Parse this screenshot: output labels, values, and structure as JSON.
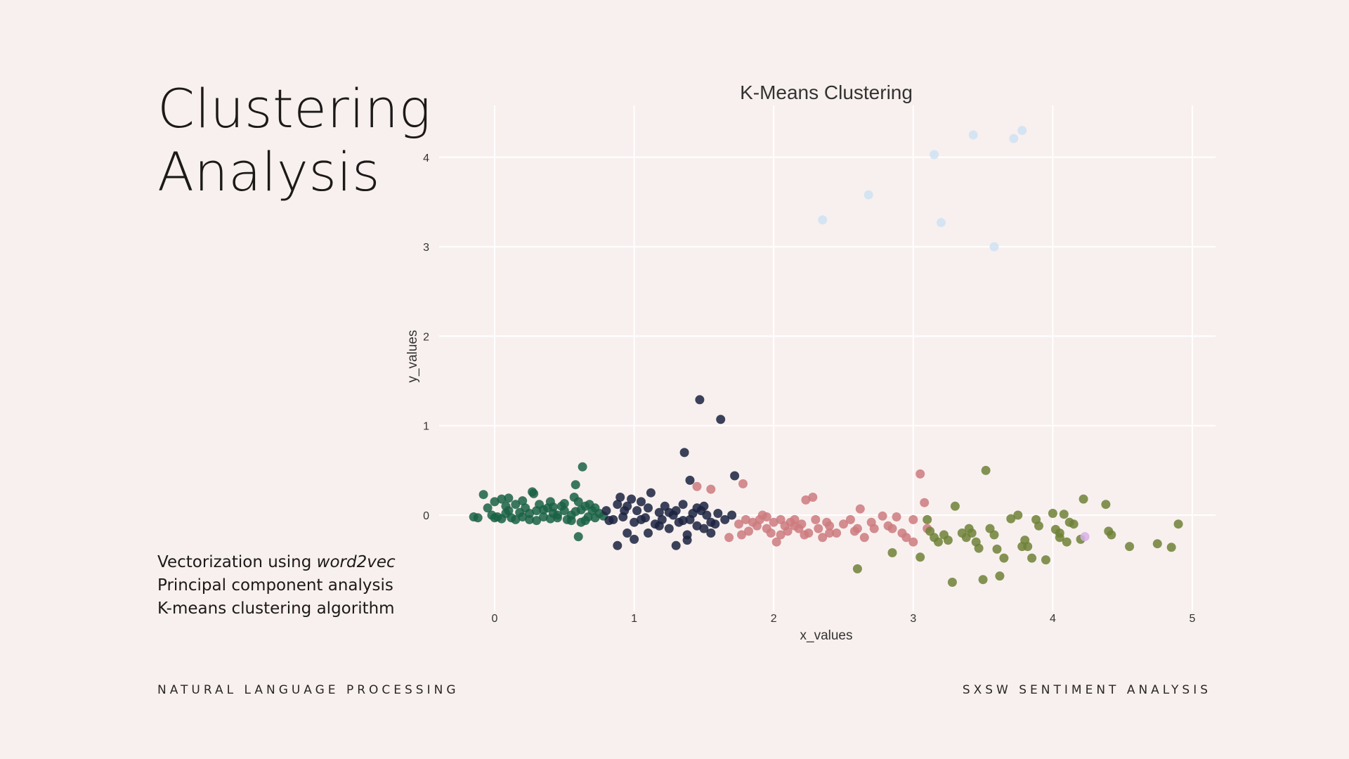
{
  "slide": {
    "title_line1": "Clustering",
    "title_line2": "Analysis",
    "bullets": {
      "b1_prefix": "Vectorization using ",
      "b1_emph": "word2vec",
      "b2": "Principal component analysis",
      "b3": "K-means clustering algorithm"
    },
    "footer_left": "NATURAL LANGUAGE PROCESSING",
    "footer_right": "SXSW SENTIMENT ANALYSIS"
  },
  "chart_data": {
    "type": "scatter",
    "title": "K-Means Clustering",
    "xlabel": "x_values",
    "ylabel": "y_values",
    "xlim": [
      -0.3,
      5.15
    ],
    "ylim": [
      -0.95,
      4.55
    ],
    "xticks": [
      0,
      1,
      2,
      3,
      4,
      5
    ],
    "yticks": [
      0,
      1,
      2,
      3,
      4
    ],
    "grid": true,
    "legend": "none",
    "series": [
      {
        "color": "#1a6145",
        "points": [
          [
            -0.15,
            -0.02
          ],
          [
            -0.12,
            -0.03
          ],
          [
            -0.08,
            0.23
          ],
          [
            -0.05,
            0.08
          ],
          [
            -0.02,
            0.0
          ],
          [
            0.0,
            0.15
          ],
          [
            0.02,
            -0.02
          ],
          [
            0.05,
            0.18
          ],
          [
            0.08,
            0.1
          ],
          [
            0.1,
            0.05
          ],
          [
            0.12,
            -0.03
          ],
          [
            0.15,
            0.12
          ],
          [
            0.18,
            0.03
          ],
          [
            0.2,
            -0.02
          ],
          [
            0.22,
            0.08
          ],
          [
            0.25,
            0.02
          ],
          [
            0.27,
            0.26
          ],
          [
            0.28,
            0.24
          ],
          [
            0.3,
            0.05
          ],
          [
            0.32,
            0.12
          ],
          [
            0.35,
            -0.02
          ],
          [
            0.38,
            0.08
          ],
          [
            0.4,
            0.15
          ],
          [
            0.42,
            0.02
          ],
          [
            0.45,
            -0.03
          ],
          [
            0.48,
            0.1
          ],
          [
            0.5,
            0.05
          ],
          [
            0.52,
            -0.05
          ],
          [
            0.55,
            0.0
          ],
          [
            0.57,
            0.2
          ],
          [
            0.58,
            0.34
          ],
          [
            0.6,
            0.15
          ],
          [
            0.62,
            0.06
          ],
          [
            0.63,
            0.54
          ],
          [
            0.65,
            0.1
          ],
          [
            0.67,
            -0.02
          ],
          [
            0.7,
            0.05
          ],
          [
            0.72,
            -0.03
          ],
          [
            0.75,
            0.02
          ],
          [
            0.78,
            -0.01
          ],
          [
            0.6,
            -0.24
          ],
          [
            0.05,
            -0.04
          ],
          [
            0.15,
            -0.05
          ],
          [
            0.3,
            -0.06
          ],
          [
            0.45,
            0.0
          ],
          [
            0.55,
            -0.06
          ],
          [
            0.68,
            0.12
          ],
          [
            0.2,
            0.16
          ],
          [
            0.1,
            0.19
          ],
          [
            0.35,
            0.06
          ],
          [
            0.5,
            0.13
          ],
          [
            0.62,
            -0.08
          ],
          [
            0.72,
            0.08
          ],
          [
            0.0,
            -0.03
          ],
          [
            0.25,
            -0.05
          ],
          [
            0.4,
            -0.04
          ],
          [
            0.65,
            -0.06
          ],
          [
            0.08,
            0.02
          ],
          [
            0.42,
            0.09
          ],
          [
            0.58,
            0.04
          ]
        ]
      },
      {
        "color": "#1b2240",
        "points": [
          [
            0.8,
            0.05
          ],
          [
            0.85,
            -0.05
          ],
          [
            0.88,
            0.12
          ],
          [
            0.9,
            0.2
          ],
          [
            0.92,
            -0.02
          ],
          [
            0.95,
            0.1
          ],
          [
            0.98,
            0.18
          ],
          [
            1.0,
            -0.08
          ],
          [
            1.02,
            0.05
          ],
          [
            1.05,
            0.15
          ],
          [
            1.08,
            -0.03
          ],
          [
            1.1,
            0.08
          ],
          [
            1.12,
            0.25
          ],
          [
            1.15,
            -0.1
          ],
          [
            1.18,
            0.03
          ],
          [
            1.2,
            -0.05
          ],
          [
            1.22,
            0.1
          ],
          [
            1.25,
            -0.15
          ],
          [
            1.28,
            0.0
          ],
          [
            1.3,
            0.05
          ],
          [
            1.32,
            -0.08
          ],
          [
            1.35,
            0.12
          ],
          [
            1.36,
            0.7
          ],
          [
            1.38,
            -0.22
          ],
          [
            1.4,
            -0.05
          ],
          [
            1.42,
            0.02
          ],
          [
            1.45,
            -0.12
          ],
          [
            1.47,
            1.29
          ],
          [
            1.48,
            0.05
          ],
          [
            1.5,
            -0.15
          ],
          [
            1.52,
            0.0
          ],
          [
            1.55,
            -0.08
          ],
          [
            1.6,
            0.02
          ],
          [
            1.62,
            1.07
          ],
          [
            1.65,
            -0.05
          ],
          [
            1.7,
            0.0
          ],
          [
            1.72,
            0.44
          ],
          [
            1.4,
            0.39
          ],
          [
            0.88,
            -0.34
          ],
          [
            1.0,
            -0.27
          ],
          [
            1.3,
            -0.34
          ],
          [
            1.38,
            -0.28
          ],
          [
            1.55,
            -0.2
          ],
          [
            1.1,
            -0.2
          ],
          [
            0.95,
            -0.2
          ],
          [
            1.25,
            0.03
          ],
          [
            1.45,
            0.08
          ],
          [
            1.58,
            -0.1
          ],
          [
            1.05,
            -0.05
          ],
          [
            1.18,
            -0.12
          ],
          [
            0.82,
            -0.06
          ],
          [
            1.35,
            -0.06
          ],
          [
            1.5,
            0.1
          ],
          [
            0.93,
            0.05
          ]
        ]
      },
      {
        "color": "#cc7a7e",
        "points": [
          [
            1.75,
            -0.1
          ],
          [
            1.78,
            0.35
          ],
          [
            1.8,
            -0.05
          ],
          [
            1.82,
            -0.18
          ],
          [
            1.85,
            -0.08
          ],
          [
            1.88,
            -0.12
          ],
          [
            1.9,
            -0.05
          ],
          [
            1.92,
            0.0
          ],
          [
            1.95,
            -0.15
          ],
          [
            1.98,
            -0.2
          ],
          [
            2.0,
            -0.08
          ],
          [
            2.02,
            -0.3
          ],
          [
            2.05,
            -0.05
          ],
          [
            2.08,
            -0.12
          ],
          [
            2.1,
            -0.18
          ],
          [
            2.12,
            -0.08
          ],
          [
            2.15,
            -0.05
          ],
          [
            2.18,
            -0.15
          ],
          [
            2.2,
            -0.1
          ],
          [
            2.22,
            -0.22
          ],
          [
            2.25,
            -0.2
          ],
          [
            2.28,
            0.2
          ],
          [
            2.3,
            -0.05
          ],
          [
            2.32,
            -0.15
          ],
          [
            2.35,
            -0.25
          ],
          [
            2.38,
            -0.08
          ],
          [
            2.4,
            -0.12
          ],
          [
            2.45,
            -0.2
          ],
          [
            2.5,
            -0.1
          ],
          [
            2.55,
            -0.05
          ],
          [
            2.6,
            -0.15
          ],
          [
            2.62,
            0.07
          ],
          [
            2.65,
            -0.25
          ],
          [
            2.7,
            -0.08
          ],
          [
            2.72,
            -0.15
          ],
          [
            2.78,
            -0.01
          ],
          [
            2.82,
            -0.12
          ],
          [
            2.88,
            -0.02
          ],
          [
            2.92,
            -0.2
          ],
          [
            2.95,
            -0.25
          ],
          [
            3.0,
            -0.05
          ],
          [
            3.05,
            0.46
          ],
          [
            3.08,
            0.14
          ],
          [
            3.1,
            -0.15
          ],
          [
            3.0,
            -0.3
          ],
          [
            2.23,
            0.17
          ],
          [
            1.68,
            -0.25
          ],
          [
            1.45,
            0.32
          ],
          [
            1.55,
            0.29
          ],
          [
            1.77,
            -0.22
          ],
          [
            2.05,
            -0.22
          ],
          [
            2.4,
            -0.2
          ],
          [
            2.58,
            -0.18
          ],
          [
            2.85,
            -0.15
          ],
          [
            1.95,
            -0.02
          ],
          [
            2.15,
            -0.12
          ]
        ]
      },
      {
        "color": "#6e8136",
        "points": [
          [
            2.6,
            -0.6
          ],
          [
            2.85,
            -0.42
          ],
          [
            3.05,
            -0.47
          ],
          [
            3.12,
            -0.18
          ],
          [
            3.15,
            -0.25
          ],
          [
            3.18,
            -0.3
          ],
          [
            3.22,
            -0.22
          ],
          [
            3.28,
            -0.75
          ],
          [
            3.3,
            0.1
          ],
          [
            3.35,
            -0.2
          ],
          [
            3.38,
            -0.25
          ],
          [
            3.4,
            -0.15
          ],
          [
            3.42,
            -0.2
          ],
          [
            3.45,
            -0.3
          ],
          [
            3.47,
            -0.37
          ],
          [
            3.5,
            -0.72
          ],
          [
            3.52,
            0.5
          ],
          [
            3.55,
            -0.15
          ],
          [
            3.58,
            -0.22
          ],
          [
            3.6,
            -0.38
          ],
          [
            3.62,
            -0.68
          ],
          [
            3.65,
            -0.48
          ],
          [
            3.7,
            -0.04
          ],
          [
            3.75,
            0.0
          ],
          [
            3.78,
            -0.35
          ],
          [
            3.8,
            -0.28
          ],
          [
            3.85,
            -0.48
          ],
          [
            3.88,
            -0.05
          ],
          [
            3.9,
            -0.12
          ],
          [
            3.95,
            -0.5
          ],
          [
            4.0,
            0.02
          ],
          [
            4.02,
            -0.16
          ],
          [
            4.05,
            -0.2
          ],
          [
            4.08,
            0.01
          ],
          [
            4.1,
            -0.3
          ],
          [
            4.12,
            -0.08
          ],
          [
            4.15,
            -0.1
          ],
          [
            4.2,
            -0.27
          ],
          [
            4.22,
            0.18
          ],
          [
            4.38,
            0.12
          ],
          [
            4.4,
            -0.18
          ],
          [
            4.42,
            -0.22
          ],
          [
            4.55,
            -0.35
          ],
          [
            4.75,
            -0.32
          ],
          [
            4.85,
            -0.36
          ],
          [
            4.9,
            -0.1
          ],
          [
            3.1,
            -0.05
          ],
          [
            3.25,
            -0.28
          ],
          [
            3.82,
            -0.35
          ],
          [
            4.05,
            -0.25
          ]
        ]
      },
      {
        "color": "#cfe2f3",
        "points": [
          [
            2.35,
            3.3
          ],
          [
            2.68,
            3.58
          ],
          [
            3.15,
            4.03
          ],
          [
            3.2,
            3.27
          ],
          [
            3.43,
            4.25
          ],
          [
            3.58,
            3.0
          ],
          [
            3.72,
            4.21
          ],
          [
            3.78,
            4.3
          ]
        ]
      },
      {
        "color": "#d8b0e8",
        "points": [
          [
            4.23,
            -0.24
          ]
        ]
      }
    ]
  }
}
